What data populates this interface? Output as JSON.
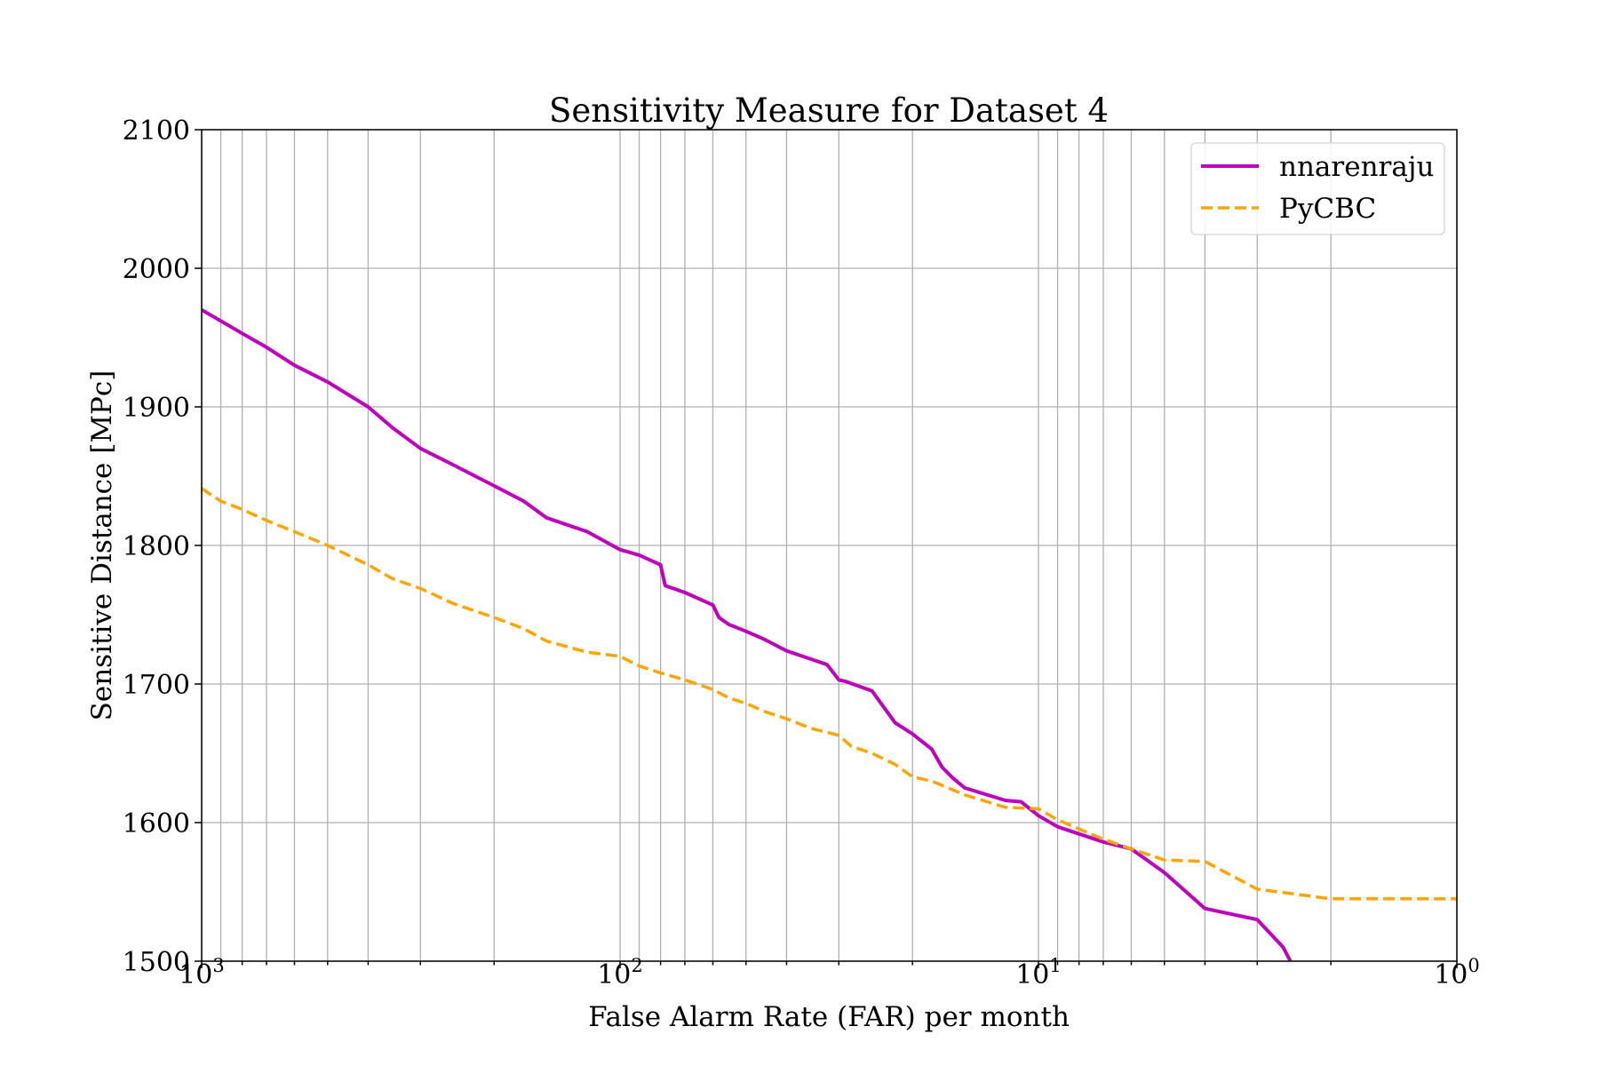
{
  "colors": {
    "nnarenraju": "#bf00bf",
    "PyCBC": "#ffa500",
    "grid": "#b0b0b0"
  },
  "chart_data": {
    "type": "line",
    "title": "Sensitivity Measure for Dataset 4",
    "xlabel": "False Alarm Rate (FAR) per month",
    "ylabel": "Sensitive Distance [MPc]",
    "x_scale": "log",
    "x_reversed": true,
    "xlim": [
      1000,
      1
    ],
    "ylim": [
      1500,
      2100
    ],
    "x_ticks": [
      {
        "value": 1000,
        "base": "10",
        "exp": "3"
      },
      {
        "value": 100,
        "base": "10",
        "exp": "2"
      },
      {
        "value": 10,
        "base": "10",
        "exp": "1"
      },
      {
        "value": 1,
        "base": "10",
        "exp": "0"
      }
    ],
    "y_ticks": [
      1500,
      1600,
      1700,
      1800,
      1900,
      2000,
      2100
    ],
    "y_tick_labels": [
      "1500",
      "1600",
      "1700",
      "1800",
      "1900",
      "2000",
      "2100"
    ],
    "grid": true,
    "legend_position": "top-right",
    "series": [
      {
        "name": "nnarenraju",
        "style": "solid",
        "x": [
          1000,
          900,
          800,
          700,
          600,
          500,
          400,
          350,
          300,
          250,
          200,
          170,
          150,
          120,
          100,
          90,
          80,
          78,
          70,
          60,
          58,
          55,
          50,
          45,
          40,
          35,
          32,
          30,
          29,
          25,
          22,
          20,
          18,
          17,
          16,
          15,
          12,
          11,
          10,
          9.0,
          7.0,
          6.0,
          5.0,
          4.0,
          3.0,
          2.6,
          2.5
        ],
        "y": [
          1970,
          1962,
          1953,
          1943,
          1930,
          1918,
          1900,
          1885,
          1870,
          1858,
          1843,
          1832,
          1820,
          1810,
          1797,
          1793,
          1786,
          1771,
          1766,
          1757,
          1748,
          1743,
          1738,
          1732,
          1724,
          1718,
          1714,
          1703,
          1702,
          1695,
          1672,
          1664,
          1653,
          1640,
          1632,
          1625,
          1616,
          1615,
          1605,
          1597,
          1586,
          1581,
          1564,
          1538,
          1530,
          1510,
          1500
        ]
      },
      {
        "name": "PyCBC",
        "style": "dashed",
        "x": [
          1000,
          900,
          800,
          700,
          600,
          500,
          400,
          350,
          300,
          250,
          200,
          170,
          150,
          120,
          100,
          90,
          80,
          70,
          60,
          55,
          50,
          45,
          40,
          35,
          30,
          28,
          25,
          22,
          20,
          18,
          15,
          12,
          10,
          9.0,
          7.0,
          6.0,
          5.0,
          4.0,
          3.0,
          2.0,
          1.0
        ],
        "y": [
          1841,
          1832,
          1826,
          1818,
          1810,
          1800,
          1786,
          1776,
          1769,
          1758,
          1748,
          1740,
          1731,
          1723,
          1720,
          1713,
          1708,
          1703,
          1696,
          1690,
          1686,
          1680,
          1675,
          1668,
          1663,
          1655,
          1650,
          1642,
          1633,
          1630,
          1620,
          1611,
          1610,
          1602,
          1588,
          1581,
          1573,
          1572,
          1552,
          1545,
          1545
        ]
      }
    ]
  }
}
